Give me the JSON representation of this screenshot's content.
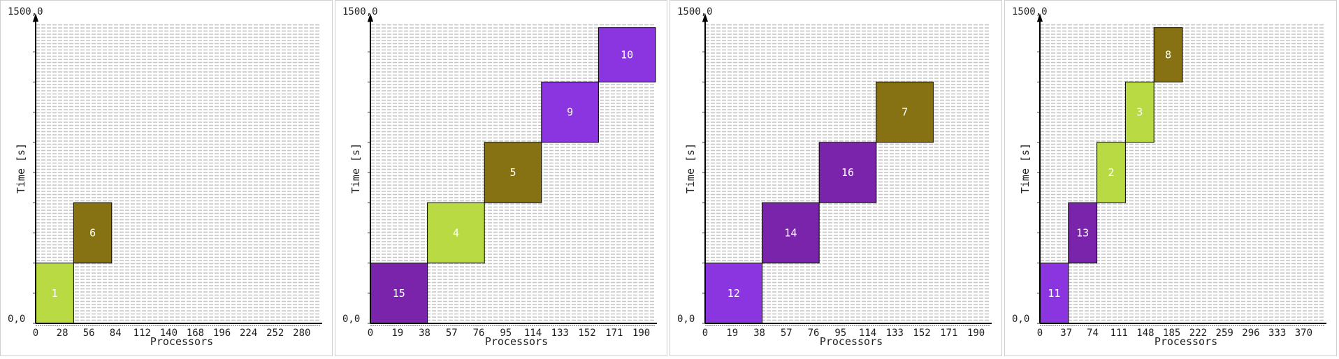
{
  "chart_data": [
    {
      "type": "gantt",
      "xlabel": "Processors",
      "ylabel": "Time [s]",
      "ytop_label": "1500,0",
      "ybottom_label": "0,0",
      "xlim": [
        0,
        300
      ],
      "ylim": [
        0,
        1500
      ],
      "xticks": [
        "0",
        "28",
        "56",
        "84",
        "112",
        "140",
        "168",
        "196",
        "224",
        "252",
        "280"
      ],
      "xtick_step": 28,
      "jobs": [
        {
          "id": "1",
          "proc_start": 0,
          "proc_end": 40,
          "t_start": 0,
          "t_end": 300,
          "color": "#bada44"
        },
        {
          "id": "6",
          "proc_start": 40,
          "proc_end": 80,
          "t_start": 300,
          "t_end": 600,
          "color": "#867113"
        }
      ]
    },
    {
      "type": "gantt",
      "xlabel": "Processors",
      "ylabel": "Time [s]",
      "ytop_label": "1500,0",
      "ybottom_label": "0,0",
      "xlim": [
        0,
        200
      ],
      "ylim": [
        0,
        1500
      ],
      "xticks": [
        "0",
        "19",
        "38",
        "57",
        "76",
        "95",
        "114",
        "133",
        "152",
        "171",
        "190"
      ],
      "xtick_step": 19,
      "jobs": [
        {
          "id": "15",
          "proc_start": 0,
          "proc_end": 40,
          "t_start": 0,
          "t_end": 300,
          "color": "#7a24ab"
        },
        {
          "id": "4",
          "proc_start": 40,
          "proc_end": 80,
          "t_start": 300,
          "t_end": 600,
          "color": "#bada44"
        },
        {
          "id": "5",
          "proc_start": 80,
          "proc_end": 120,
          "t_start": 600,
          "t_end": 900,
          "color": "#867113"
        },
        {
          "id": "9",
          "proc_start": 120,
          "proc_end": 160,
          "t_start": 900,
          "t_end": 1200,
          "color": "#8a35e0"
        },
        {
          "id": "10",
          "proc_start": 160,
          "proc_end": 200,
          "t_start": 1200,
          "t_end": 1470,
          "color": "#8a35e0"
        }
      ]
    },
    {
      "type": "gantt",
      "xlabel": "Processors",
      "ylabel": "Time [s]",
      "ytop_label": "1500,0",
      "ybottom_label": "0,0",
      "xlim": [
        0,
        200
      ],
      "ylim": [
        0,
        1500
      ],
      "xticks": [
        "0",
        "19",
        "38",
        "57",
        "76",
        "95",
        "114",
        "133",
        "152",
        "171",
        "190"
      ],
      "xtick_step": 19,
      "jobs": [
        {
          "id": "12",
          "proc_start": 0,
          "proc_end": 40,
          "t_start": 0,
          "t_end": 300,
          "color": "#8a35e0"
        },
        {
          "id": "14",
          "proc_start": 40,
          "proc_end": 80,
          "t_start": 300,
          "t_end": 600,
          "color": "#7a24ab"
        },
        {
          "id": "16",
          "proc_start": 80,
          "proc_end": 120,
          "t_start": 600,
          "t_end": 900,
          "color": "#7a24ab"
        },
        {
          "id": "7",
          "proc_start": 120,
          "proc_end": 160,
          "t_start": 900,
          "t_end": 1200,
          "color": "#867113"
        }
      ]
    },
    {
      "type": "gantt",
      "xlabel": "Processors",
      "ylabel": "Time [s]",
      "ytop_label": "1500,0",
      "ybottom_label": "0,0",
      "xlim": [
        0,
        400
      ],
      "ylim": [
        0,
        1500
      ],
      "xticks": [
        "0",
        "37",
        "74",
        "111",
        "148",
        "185",
        "222",
        "259",
        "296",
        "333",
        "370"
      ],
      "xtick_step": 37,
      "jobs": [
        {
          "id": "11",
          "proc_start": 0,
          "proc_end": 40,
          "t_start": 0,
          "t_end": 300,
          "color": "#8a35e0"
        },
        {
          "id": "13",
          "proc_start": 40,
          "proc_end": 80,
          "t_start": 300,
          "t_end": 600,
          "color": "#7a24ab"
        },
        {
          "id": "2",
          "proc_start": 80,
          "proc_end": 120,
          "t_start": 600,
          "t_end": 900,
          "color": "#bada44"
        },
        {
          "id": "3",
          "proc_start": 120,
          "proc_end": 160,
          "t_start": 900,
          "t_end": 1200,
          "color": "#bada44"
        },
        {
          "id": "8",
          "proc_start": 160,
          "proc_end": 200,
          "t_start": 1200,
          "t_end": 1470,
          "color": "#867113"
        }
      ]
    }
  ]
}
